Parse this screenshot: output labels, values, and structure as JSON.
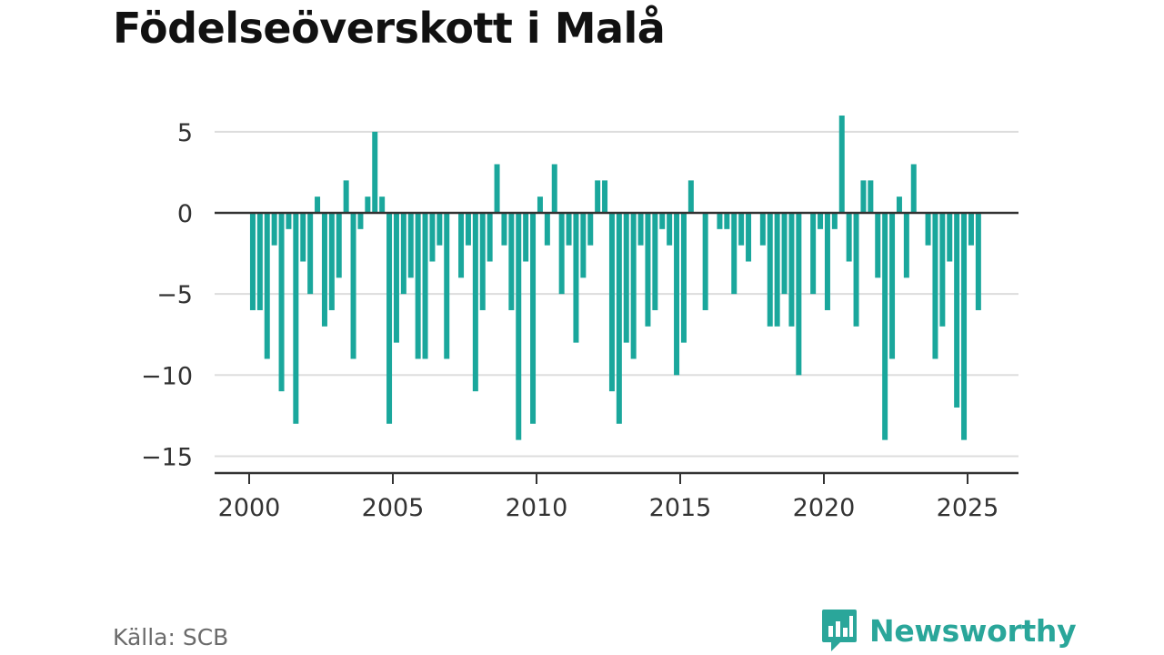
{
  "title": "Födelseöverskott i Malå",
  "source": "Källa: SCB",
  "brand": {
    "name": "Newsworthy",
    "icon": "newsworthy-logo-icon"
  },
  "colors": {
    "bar": "#1aa79c",
    "grid": "#dddddd",
    "zero": "#333333",
    "brand": "#2aa69a"
  },
  "chart_data": {
    "type": "bar",
    "title": "Födelseöverskott i Malå",
    "xlabel": "",
    "ylabel": "",
    "x_start": "2000-01",
    "x_step": "quarter",
    "xlim": [
      1999.6,
      2025.9
    ],
    "ylim": [
      -15,
      6
    ],
    "y_ticks": [
      5,
      0,
      -5,
      -10,
      -15
    ],
    "y_tick_labels": [
      "5",
      "0",
      "−5",
      "−10",
      "−15"
    ],
    "x_ticks": [
      2000,
      2005,
      2010,
      2015,
      2020,
      2025
    ],
    "x_tick_labels": [
      "2000",
      "2005",
      "2010",
      "2015",
      "2020",
      "2025"
    ],
    "grid": true,
    "values": [
      -6,
      -6,
      -9,
      -2,
      -11,
      -1,
      -13,
      -3,
      -5,
      1,
      -7,
      -6,
      -4,
      2,
      -9,
      -1,
      1,
      5,
      1,
      -13,
      -8,
      -5,
      -4,
      -9,
      -9,
      -3,
      -2,
      -9,
      0,
      -4,
      -2,
      -11,
      -6,
      -3,
      3,
      -2,
      -6,
      -14,
      -3,
      -13,
      1,
      -2,
      3,
      -5,
      -2,
      -8,
      -4,
      -2,
      2,
      2,
      -11,
      -13,
      -8,
      -9,
      -2,
      -7,
      -6,
      -1,
      -2,
      -10,
      -8,
      2,
      0,
      -6,
      0,
      -1,
      -1,
      -5,
      -2,
      -3,
      0,
      -2,
      -7,
      -7,
      -5,
      -7,
      -10,
      0,
      -5,
      -1,
      -6,
      -1,
      6,
      -3,
      -7,
      2,
      2,
      -4,
      -14,
      -9,
      1,
      -4,
      3,
      0,
      -2,
      -9,
      -7,
      -3,
      -12,
      -14,
      -2,
      -6
    ]
  }
}
